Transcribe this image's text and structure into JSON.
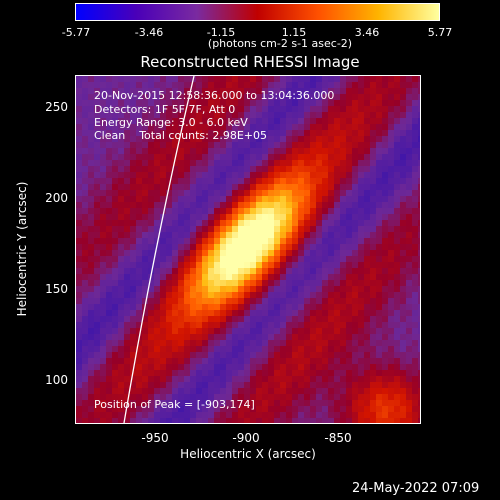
{
  "colorbar": {
    "ticks": [
      "-5.77",
      "-3.46",
      "-1.15",
      "1.15",
      "3.46",
      "5.77"
    ],
    "units": "(photons cm-2 s-1 asec-2)",
    "colors": [
      "#0000ff",
      "#4a00b8",
      "#7a2aa0",
      "#c00000",
      "#ff5000",
      "#ffb400",
      "#ffffa0"
    ]
  },
  "title": "Reconstructed RHESSI Image",
  "annotations": {
    "time_range": "20-Nov-2015 12:58:36.000 to 13:04:36.000",
    "detectors": "Detectors: 1F 5F 7F, Att 0",
    "energy_range": "Energy Range: 3.0 - 6.0 keV",
    "clean_counts": "Clean    Total counts: 2.98E+05",
    "peak_position": "Position of Peak = [-903,174]"
  },
  "axes": {
    "xlabel": "Heliocentric X (arcsec)",
    "ylabel": "Heliocentric Y (arcsec)",
    "xticks": [
      "-950",
      "-900",
      "-850"
    ],
    "yticks": [
      "250",
      "200",
      "150",
      "100"
    ]
  },
  "image": {
    "xrange": [
      -995,
      -810
    ],
    "yrange": [
      75,
      268
    ],
    "peak": [
      -903,
      174
    ]
  },
  "date_stamp": "24-May-2022 07:09"
}
